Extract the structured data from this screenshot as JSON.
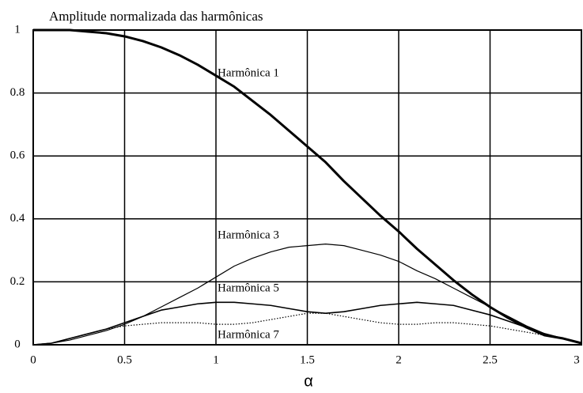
{
  "chart_data": {
    "type": "line",
    "title": "Amplitude normalizada das harmônicas",
    "x_label": "α",
    "x": [
      0,
      0.1,
      0.2,
      0.3,
      0.4,
      0.5,
      0.6,
      0.7,
      0.8,
      0.9,
      1.0,
      1.1,
      1.2,
      1.3,
      1.4,
      1.5,
      1.6,
      1.7,
      1.8,
      1.9,
      2.0,
      2.1,
      2.2,
      2.3,
      2.4,
      2.5,
      2.6,
      2.7,
      2.8,
      2.9,
      3.0
    ],
    "series": [
      {
        "name": "Harmônica 1",
        "color": "#000000",
        "values": [
          1,
          1,
          1,
          0.995,
          0.99,
          0.98,
          0.965,
          0.945,
          0.92,
          0.89,
          0.855,
          0.82,
          0.775,
          0.73,
          0.68,
          0.63,
          0.58,
          0.52,
          0.465,
          0.41,
          0.36,
          0.305,
          0.255,
          0.205,
          0.16,
          0.12,
          0.085,
          0.055,
          0.03,
          0.02,
          0.005
        ]
      },
      {
        "name": "Harmônica 3",
        "color": "#000000",
        "values": [
          0,
          0.005,
          0.015,
          0.03,
          0.045,
          0.065,
          0.09,
          0.12,
          0.15,
          0.18,
          0.215,
          0.25,
          0.275,
          0.295,
          0.31,
          0.315,
          0.32,
          0.315,
          0.3,
          0.285,
          0.265,
          0.235,
          0.21,
          0.18,
          0.15,
          0.12,
          0.09,
          0.06,
          0.035,
          0.02,
          0.005
        ]
      },
      {
        "name": "Harmônica 5",
        "color": "#000000",
        "values": [
          0,
          0.005,
          0.02,
          0.035,
          0.05,
          0.07,
          0.09,
          0.11,
          0.12,
          0.13,
          0.135,
          0.135,
          0.13,
          0.125,
          0.115,
          0.105,
          0.1,
          0.105,
          0.115,
          0.125,
          0.13,
          0.135,
          0.13,
          0.125,
          0.11,
          0.095,
          0.075,
          0.055,
          0.035,
          0.02,
          0.005
        ]
      },
      {
        "name": "Harmônica 7",
        "color": "#000000",
        "values": [
          0,
          0.005,
          0.02,
          0.035,
          0.05,
          0.06,
          0.065,
          0.07,
          0.07,
          0.07,
          0.065,
          0.065,
          0.07,
          0.08,
          0.09,
          0.1,
          0.1,
          0.09,
          0.08,
          0.07,
          0.065,
          0.065,
          0.07,
          0.07,
          0.065,
          0.06,
          0.05,
          0.04,
          0.03,
          0.02,
          0.005
        ]
      }
    ],
    "xlim": [
      0,
      3
    ],
    "ylim": [
      0,
      1
    ],
    "xticks": [
      0,
      0.5,
      1,
      1.5,
      2,
      2.5,
      3
    ],
    "yticks": [
      0,
      0.2,
      0.4,
      0.6,
      0.8,
      1
    ],
    "grid": true
  }
}
